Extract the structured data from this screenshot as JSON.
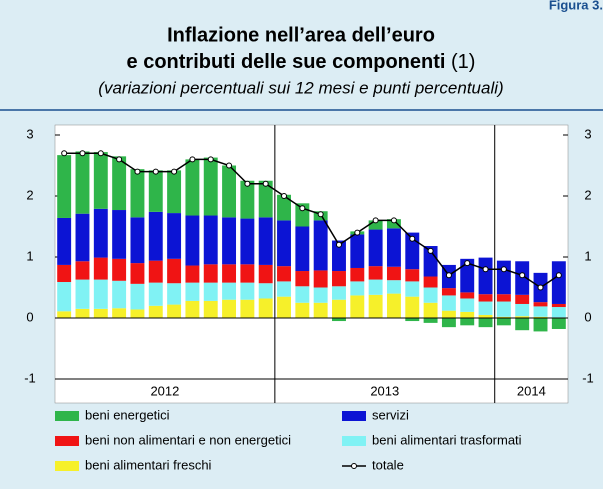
{
  "figure_label": "Figura 3.",
  "chart_data": {
    "type": "stacked_bar_line",
    "title": [
      "Inflazione nell’area dell’euro",
      "e contributi delle sue componenti"
    ],
    "title_note": "(1)",
    "subtitle": "(variazioni percentuali sui 12 mesi e punti percentuali)",
    "categories": [
      null,
      null,
      null,
      null,
      null,
      null,
      null,
      null,
      null,
      null,
      null,
      null,
      null,
      null,
      null,
      null,
      null,
      null,
      null,
      null,
      null,
      null,
      null,
      null,
      null,
      null,
      null,
      null
    ],
    "years": [
      {
        "label": "2012",
        "months": 12
      },
      {
        "label": "2013",
        "months": 12
      },
      {
        "label": "2014",
        "months": 4
      }
    ],
    "ylim": [
      -1,
      3
    ],
    "yticks": [
      -1,
      0,
      1,
      2,
      3
    ],
    "series": [
      {
        "name": "beni alimentari freschi",
        "color": "#f6f02a",
        "values": [
          0.11,
          0.15,
          0.15,
          0.16,
          0.14,
          0.2,
          0.22,
          0.28,
          0.28,
          0.3,
          0.3,
          0.32,
          0.35,
          0.25,
          0.25,
          0.3,
          0.37,
          0.38,
          0.4,
          0.35,
          0.25,
          0.12,
          0.1,
          0.05,
          0.02,
          0.03,
          0.02,
          0.01
        ]
      },
      {
        "name": "beni alimentari trasformati",
        "color": "#80f2f4",
        "values": [
          0.48,
          0.48,
          0.48,
          0.45,
          0.42,
          0.38,
          0.35,
          0.3,
          0.3,
          0.28,
          0.28,
          0.25,
          0.25,
          0.27,
          0.25,
          0.22,
          0.23,
          0.25,
          0.22,
          0.25,
          0.25,
          0.25,
          0.22,
          0.22,
          0.25,
          0.2,
          0.17,
          0.17
        ]
      },
      {
        "name": "beni non alimentari e non energetici",
        "color": "#f01414",
        "values": [
          0.28,
          0.3,
          0.36,
          0.36,
          0.34,
          0.36,
          0.4,
          0.28,
          0.3,
          0.3,
          0.3,
          0.3,
          0.25,
          0.25,
          0.28,
          0.25,
          0.22,
          0.22,
          0.22,
          0.2,
          0.18,
          0.12,
          0.1,
          0.12,
          0.12,
          0.15,
          0.07,
          0.05
        ]
      },
      {
        "name": "servizi",
        "color": "#0c14d4",
        "values": [
          0.77,
          0.78,
          0.8,
          0.8,
          0.75,
          0.8,
          0.75,
          0.82,
          0.8,
          0.77,
          0.75,
          0.78,
          0.75,
          0.73,
          0.82,
          0.5,
          0.55,
          0.6,
          0.63,
          0.6,
          0.5,
          0.38,
          0.55,
          0.6,
          0.55,
          0.55,
          0.48,
          0.7
        ]
      },
      {
        "name": "beni energetici",
        "color": "#2fb54a",
        "values": [
          1.03,
          1.02,
          0.93,
          0.88,
          0.79,
          0.68,
          0.7,
          0.92,
          0.95,
          0.85,
          0.62,
          0.6,
          0.42,
          0.38,
          0.15,
          -0.05,
          0.05,
          0.15,
          0.15,
          -0.05,
          -0.08,
          -0.15,
          -0.12,
          -0.15,
          -0.12,
          -0.2,
          -0.22,
          -0.18
        ]
      }
    ],
    "total": {
      "name": "totale",
      "color": "#000000",
      "values": [
        2.7,
        2.7,
        2.7,
        2.6,
        2.4,
        2.4,
        2.4,
        2.6,
        2.6,
        2.5,
        2.2,
        2.2,
        2.0,
        1.8,
        1.7,
        1.2,
        1.4,
        1.6,
        1.6,
        1.3,
        1.1,
        0.7,
        0.9,
        0.8,
        0.8,
        0.7,
        0.5,
        0.7
      ]
    },
    "legend_order": [
      4,
      3,
      2,
      1,
      0
    ]
  }
}
